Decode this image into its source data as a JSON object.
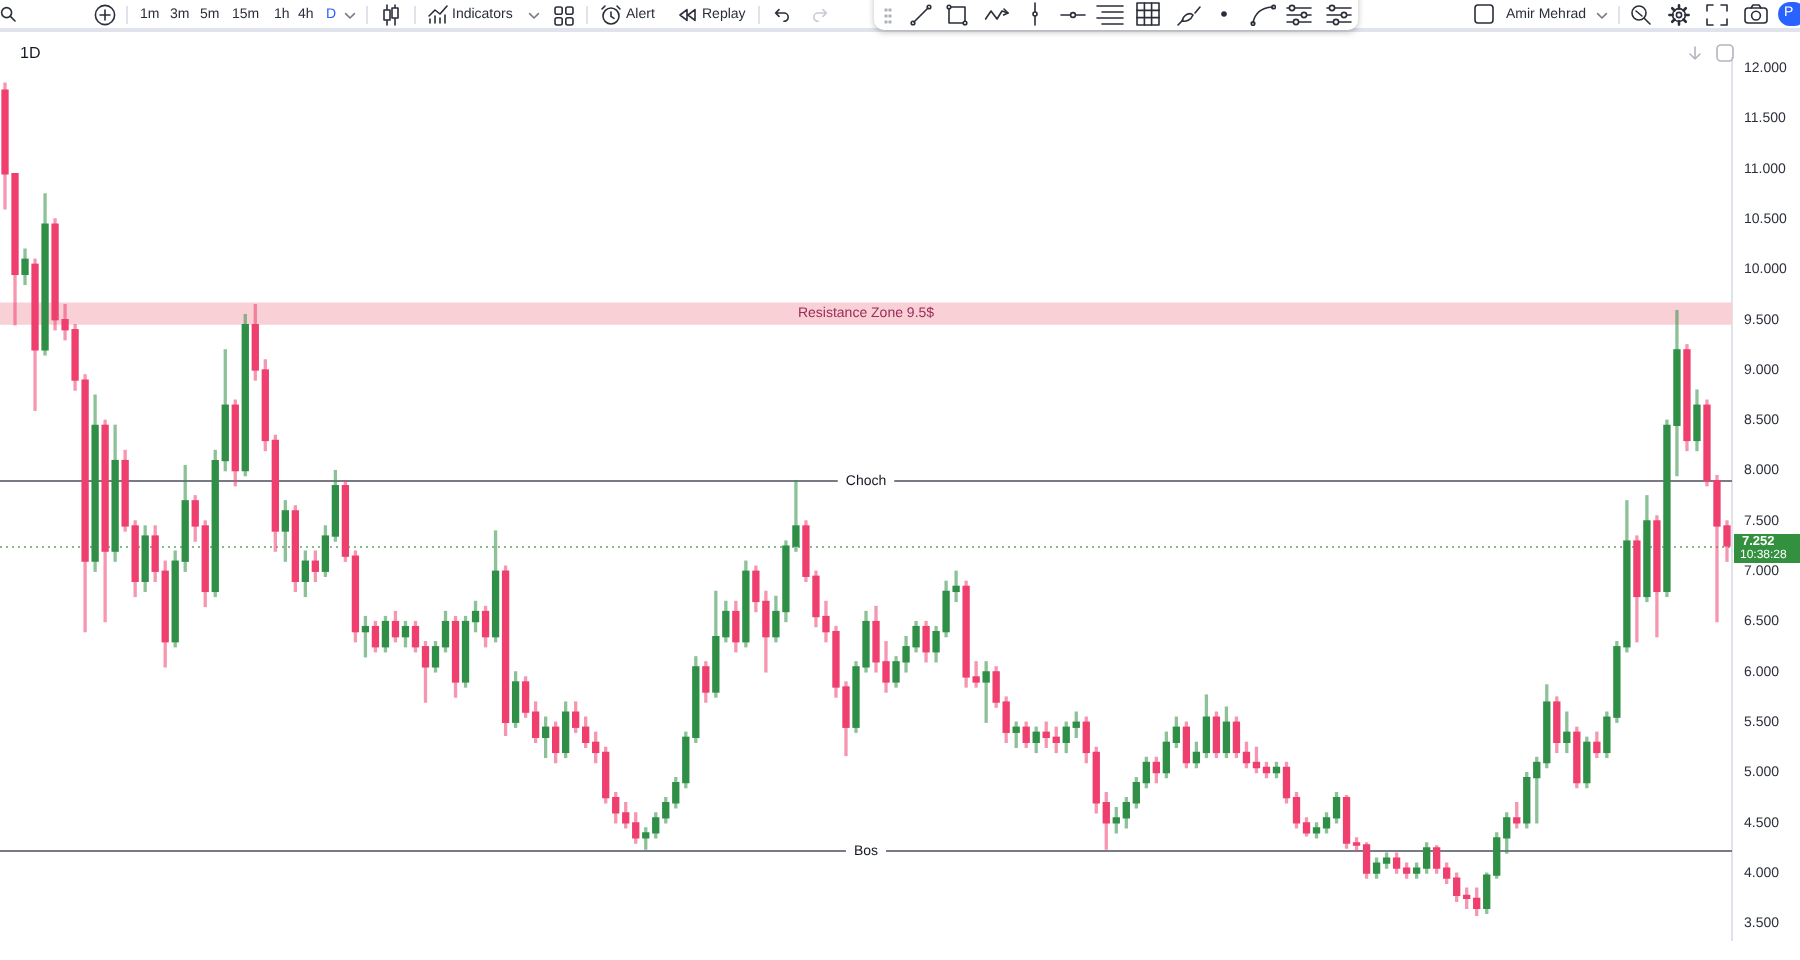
{
  "chart_data": {
    "type": "candlestick",
    "title": "1D",
    "categories": [
      null,
      null,
      null,
      null,
      null,
      null,
      null,
      null,
      null,
      null,
      null,
      null,
      null,
      null,
      null,
      null,
      null,
      null,
      null,
      null,
      null,
      null,
      null,
      null,
      null,
      null,
      null,
      null,
      null,
      null,
      null,
      null,
      null,
      null,
      null,
      null,
      null,
      null,
      null,
      null,
      null,
      null,
      null,
      null,
      null,
      null,
      null,
      null,
      null,
      null,
      null,
      null,
      null,
      null,
      null,
      null,
      null,
      null,
      null,
      null,
      null,
      null,
      null,
      null,
      null,
      null,
      null,
      null,
      null,
      null,
      null,
      null,
      null,
      null,
      null,
      null,
      null,
      null,
      null,
      null,
      null,
      null,
      null,
      null,
      null,
      null,
      null,
      null,
      null,
      null,
      null,
      null,
      null,
      null,
      null,
      null,
      null,
      null,
      null,
      null,
      null,
      null,
      null,
      null,
      null,
      null,
      null,
      null,
      null,
      null,
      null,
      null,
      null,
      null,
      null,
      null,
      null,
      null,
      null,
      null,
      null,
      null,
      null,
      null,
      null,
      null,
      null,
      null,
      null,
      null,
      null,
      null,
      null,
      null,
      null,
      null,
      null,
      null,
      null,
      null,
      null,
      null,
      null,
      null,
      null,
      null,
      null,
      null,
      null,
      null,
      null,
      null,
      null,
      null,
      null,
      null,
      null,
      null,
      null,
      null,
      null,
      null,
      null,
      null,
      null,
      null,
      null,
      null,
      null,
      null,
      null,
      null,
      null
    ],
    "ohlc": [
      [
        11.78,
        11.85,
        10.6,
        10.95
      ],
      [
        10.95,
        10.95,
        9.45,
        9.95
      ],
      [
        9.95,
        10.2,
        9.85,
        10.1
      ],
      [
        10.05,
        10.1,
        8.6,
        9.2
      ],
      [
        9.2,
        10.75,
        9.15,
        10.45
      ],
      [
        10.45,
        10.5,
        9.4,
        9.5
      ],
      [
        9.5,
        9.65,
        9.3,
        9.4
      ],
      [
        9.4,
        9.45,
        8.8,
        8.9
      ],
      [
        8.9,
        8.95,
        6.4,
        7.1
      ],
      [
        7.1,
        8.75,
        7.0,
        8.45
      ],
      [
        8.45,
        8.5,
        6.5,
        7.2
      ],
      [
        7.2,
        8.45,
        7.1,
        8.1
      ],
      [
        8.1,
        8.2,
        7.4,
        7.45
      ],
      [
        7.45,
        7.5,
        6.75,
        6.9
      ],
      [
        6.9,
        7.45,
        6.8,
        7.35
      ],
      [
        7.35,
        7.45,
        6.9,
        7.0
      ],
      [
        7.0,
        7.1,
        6.05,
        6.3
      ],
      [
        6.3,
        7.2,
        6.25,
        7.1
      ],
      [
        7.1,
        8.05,
        7.0,
        7.7
      ],
      [
        7.7,
        7.75,
        7.3,
        7.45
      ],
      [
        7.45,
        7.5,
        6.65,
        6.8
      ],
      [
        6.8,
        8.2,
        6.75,
        8.1
      ],
      [
        8.1,
        9.2,
        8.0,
        8.65
      ],
      [
        8.65,
        8.7,
        7.85,
        8.0
      ],
      [
        8.0,
        9.55,
        7.95,
        9.45
      ],
      [
        9.45,
        9.65,
        8.9,
        9.0
      ],
      [
        9.0,
        9.1,
        8.2,
        8.3
      ],
      [
        8.3,
        8.35,
        7.2,
        7.4
      ],
      [
        7.4,
        7.7,
        7.1,
        7.6
      ],
      [
        7.6,
        7.65,
        6.8,
        6.9
      ],
      [
        6.9,
        7.2,
        6.75,
        7.1
      ],
      [
        7.1,
        7.2,
        6.9,
        7.0
      ],
      [
        7.0,
        7.45,
        6.95,
        7.35
      ],
      [
        7.35,
        8.0,
        7.3,
        7.85
      ],
      [
        7.85,
        7.9,
        7.1,
        7.15
      ],
      [
        7.15,
        7.2,
        6.3,
        6.4
      ],
      [
        6.4,
        6.55,
        6.15,
        6.45
      ],
      [
        6.45,
        6.5,
        6.2,
        6.25
      ],
      [
        6.25,
        6.55,
        6.2,
        6.5
      ],
      [
        6.5,
        6.6,
        6.3,
        6.35
      ],
      [
        6.35,
        6.5,
        6.25,
        6.45
      ],
      [
        6.45,
        6.5,
        6.2,
        6.25
      ],
      [
        6.25,
        6.3,
        5.7,
        6.05
      ],
      [
        6.05,
        6.3,
        6.0,
        6.25
      ],
      [
        6.25,
        6.6,
        6.2,
        6.5
      ],
      [
        6.5,
        6.55,
        5.75,
        5.9
      ],
      [
        5.9,
        6.55,
        5.85,
        6.5
      ],
      [
        6.5,
        6.7,
        6.4,
        6.6
      ],
      [
        6.6,
        6.65,
        6.25,
        6.35
      ],
      [
        6.35,
        7.4,
        6.3,
        7.0
      ],
      [
        7.0,
        7.05,
        5.37,
        5.5
      ],
      [
        5.5,
        6.0,
        5.45,
        5.9
      ],
      [
        5.9,
        5.95,
        5.55,
        5.6
      ],
      [
        5.6,
        5.7,
        5.3,
        5.35
      ],
      [
        5.35,
        5.55,
        5.15,
        5.45
      ],
      [
        5.45,
        5.5,
        5.1,
        5.2
      ],
      [
        5.2,
        5.7,
        5.15,
        5.6
      ],
      [
        5.6,
        5.7,
        5.4,
        5.45
      ],
      [
        5.45,
        5.55,
        5.25,
        5.3
      ],
      [
        5.3,
        5.4,
        5.1,
        5.2
      ],
      [
        5.2,
        5.25,
        4.7,
        4.75
      ],
      [
        4.75,
        4.8,
        4.5,
        4.6
      ],
      [
        4.6,
        4.7,
        4.45,
        4.5
      ],
      [
        4.5,
        4.6,
        4.3,
        4.35
      ],
      [
        4.35,
        4.45,
        4.24,
        4.4
      ],
      [
        4.4,
        4.6,
        4.35,
        4.55
      ],
      [
        4.55,
        4.75,
        4.5,
        4.7
      ],
      [
        4.7,
        4.95,
        4.65,
        4.9
      ],
      [
        4.9,
        5.4,
        4.85,
        5.35
      ],
      [
        5.35,
        6.15,
        5.3,
        6.05
      ],
      [
        6.05,
        6.1,
        5.7,
        5.8
      ],
      [
        5.8,
        6.8,
        5.75,
        6.35
      ],
      [
        6.35,
        6.7,
        6.3,
        6.6
      ],
      [
        6.6,
        6.7,
        6.2,
        6.3
      ],
      [
        6.3,
        7.1,
        6.25,
        7.0
      ],
      [
        7.0,
        7.05,
        6.6,
        6.7
      ],
      [
        6.7,
        6.8,
        6.0,
        6.35
      ],
      [
        6.35,
        6.75,
        6.3,
        6.6
      ],
      [
        6.6,
        7.3,
        6.5,
        7.25
      ],
      [
        7.25,
        7.9,
        7.2,
        7.45
      ],
      [
        7.45,
        7.5,
        6.9,
        6.95
      ],
      [
        6.95,
        7.0,
        6.45,
        6.55
      ],
      [
        6.55,
        6.7,
        6.3,
        6.4
      ],
      [
        6.4,
        6.45,
        5.75,
        5.85
      ],
      [
        5.85,
        5.9,
        5.17,
        5.45
      ],
      [
        5.45,
        6.1,
        5.4,
        6.05
      ],
      [
        6.05,
        6.6,
        6.0,
        6.5
      ],
      [
        6.5,
        6.65,
        6.0,
        6.1
      ],
      [
        6.1,
        6.3,
        5.8,
        5.9
      ],
      [
        5.9,
        6.15,
        5.85,
        6.1
      ],
      [
        6.1,
        6.35,
        6.0,
        6.25
      ],
      [
        6.25,
        6.5,
        6.2,
        6.45
      ],
      [
        6.45,
        6.5,
        6.1,
        6.2
      ],
      [
        6.2,
        6.45,
        6.1,
        6.4
      ],
      [
        6.4,
        6.9,
        6.35,
        6.8
      ],
      [
        6.8,
        7.0,
        6.7,
        6.85
      ],
      [
        6.85,
        6.9,
        5.85,
        5.95
      ],
      [
        5.95,
        6.1,
        5.85,
        5.9
      ],
      [
        5.9,
        6.1,
        5.5,
        6.0
      ],
      [
        6.0,
        6.05,
        5.65,
        5.7
      ],
      [
        5.7,
        5.75,
        5.3,
        5.4
      ],
      [
        5.4,
        5.5,
        5.25,
        5.45
      ],
      [
        5.45,
        5.5,
        5.25,
        5.3
      ],
      [
        5.3,
        5.45,
        5.2,
        5.4
      ],
      [
        5.4,
        5.5,
        5.25,
        5.35
      ],
      [
        5.35,
        5.45,
        5.2,
        5.3
      ],
      [
        5.3,
        5.5,
        5.2,
        5.45
      ],
      [
        5.45,
        5.6,
        5.35,
        5.5
      ],
      [
        5.5,
        5.55,
        5.1,
        5.2
      ],
      [
        5.2,
        5.25,
        4.6,
        4.7
      ],
      [
        4.7,
        4.8,
        4.24,
        4.5
      ],
      [
        4.5,
        4.65,
        4.4,
        4.55
      ],
      [
        4.55,
        4.75,
        4.45,
        4.7
      ],
      [
        4.7,
        4.95,
        4.65,
        4.9
      ],
      [
        4.9,
        5.15,
        4.85,
        5.1
      ],
      [
        5.1,
        5.15,
        4.9,
        5.0
      ],
      [
        5.0,
        5.4,
        4.95,
        5.3
      ],
      [
        5.3,
        5.55,
        5.25,
        5.45
      ],
      [
        5.45,
        5.5,
        5.05,
        5.1
      ],
      [
        5.1,
        5.3,
        5.05,
        5.2
      ],
      [
        5.2,
        5.77,
        5.15,
        5.55
      ],
      [
        5.55,
        5.6,
        5.15,
        5.2
      ],
      [
        5.2,
        5.65,
        5.15,
        5.5
      ],
      [
        5.5,
        5.55,
        5.15,
        5.2
      ],
      [
        5.2,
        5.3,
        5.05,
        5.1
      ],
      [
        5.1,
        5.25,
        5.0,
        5.05
      ],
      [
        5.05,
        5.1,
        4.95,
        5.0
      ],
      [
        5.0,
        5.1,
        4.95,
        5.05
      ],
      [
        5.05,
        5.1,
        4.7,
        4.75
      ],
      [
        4.75,
        4.8,
        4.45,
        4.5
      ],
      [
        4.5,
        4.55,
        4.37,
        4.4
      ],
      [
        4.4,
        4.5,
        4.35,
        4.45
      ],
      [
        4.45,
        4.6,
        4.4,
        4.55
      ],
      [
        4.55,
        4.8,
        4.5,
        4.75
      ],
      [
        4.75,
        4.77,
        4.25,
        4.3
      ],
      [
        4.3,
        4.35,
        4.22,
        4.28
      ],
      [
        4.28,
        4.3,
        3.95,
        4.0
      ],
      [
        4.0,
        4.15,
        3.95,
        4.1
      ],
      [
        4.1,
        4.2,
        4.05,
        4.15
      ],
      [
        4.15,
        4.2,
        4.0,
        4.05
      ],
      [
        4.05,
        4.1,
        3.95,
        4.0
      ],
      [
        4.0,
        4.1,
        3.95,
        4.05
      ],
      [
        4.05,
        4.3,
        4.0,
        4.25
      ],
      [
        4.25,
        4.27,
        4.0,
        4.05
      ],
      [
        4.05,
        4.1,
        3.9,
        3.95
      ],
      [
        3.95,
        4.0,
        3.72,
        3.78
      ],
      [
        3.78,
        3.85,
        3.65,
        3.75
      ],
      [
        3.75,
        3.85,
        3.58,
        3.65
      ],
      [
        3.65,
        4.0,
        3.6,
        3.98
      ],
      [
        3.98,
        4.4,
        3.95,
        4.35
      ],
      [
        4.35,
        4.6,
        4.2,
        4.55
      ],
      [
        4.55,
        4.7,
        4.45,
        4.5
      ],
      [
        4.5,
        5.0,
        4.45,
        4.95
      ],
      [
        4.95,
        5.15,
        4.5,
        5.1
      ],
      [
        5.1,
        5.87,
        5.05,
        5.7
      ],
      [
        5.7,
        5.75,
        5.2,
        5.3
      ],
      [
        5.3,
        5.6,
        5.2,
        5.4
      ],
      [
        5.4,
        5.45,
        4.85,
        4.9
      ],
      [
        4.9,
        5.35,
        4.85,
        5.3
      ],
      [
        5.3,
        5.4,
        5.15,
        5.2
      ],
      [
        5.2,
        5.6,
        5.15,
        5.55
      ],
      [
        5.55,
        6.3,
        5.5,
        6.25
      ],
      [
        6.25,
        7.7,
        6.2,
        7.3
      ],
      [
        7.3,
        7.35,
        6.3,
        6.75
      ],
      [
        6.75,
        7.75,
        6.7,
        7.5
      ],
      [
        7.5,
        7.55,
        6.35,
        6.8
      ],
      [
        6.8,
        8.5,
        6.75,
        8.45
      ],
      [
        8.45,
        9.59,
        7.95,
        9.2
      ],
      [
        9.2,
        9.25,
        8.2,
        8.3
      ],
      [
        8.3,
        8.8,
        8.2,
        8.65
      ],
      [
        8.65,
        8.7,
        7.85,
        7.9
      ],
      [
        7.9,
        7.95,
        6.5,
        7.45
      ],
      [
        7.45,
        7.5,
        7.1,
        7.252
      ]
    ],
    "colors": [
      "#ee3f6f",
      "#ee3f6f",
      "#2f8f46",
      "#ee3f6f",
      "#2f8f46",
      "#ee3f6f",
      "#ee3f6f",
      "#ee3f6f",
      "#ee3f6f",
      "#2f8f46",
      "#ee3f6f",
      "#2f8f46",
      "#ee3f6f",
      "#ee3f6f",
      "#2f8f46",
      "#ee3f6f",
      "#ee3f6f",
      "#2f8f46",
      "#2f8f46",
      "#ee3f6f",
      "#ee3f6f",
      "#2f8f46",
      "#2f8f46",
      "#ee3f6f",
      "#2f8f46",
      "#ee3f6f",
      "#ee3f6f",
      "#ee3f6f",
      "#2f8f46",
      "#ee3f6f",
      "#2f8f46",
      "#ee3f6f",
      "#2f8f46",
      "#2f8f46",
      "#ee3f6f",
      "#ee3f6f",
      "#2f8f46",
      "#ee3f6f",
      "#2f8f46",
      "#ee3f6f",
      "#2f8f46",
      "#ee3f6f",
      "#ee3f6f",
      "#2f8f46",
      "#2f8f46",
      "#ee3f6f",
      "#2f8f46",
      "#2f8f46",
      "#ee3f6f",
      "#2f8f46",
      "#ee3f6f",
      "#2f8f46",
      "#ee3f6f",
      "#ee3f6f",
      "#2f8f46",
      "#ee3f6f",
      "#2f8f46",
      "#ee3f6f",
      "#ee3f6f",
      "#ee3f6f",
      "#ee3f6f",
      "#ee3f6f",
      "#ee3f6f",
      "#ee3f6f",
      "#2f8f46",
      "#2f8f46",
      "#2f8f46",
      "#2f8f46",
      "#2f8f46",
      "#2f8f46",
      "#ee3f6f",
      "#2f8f46",
      "#2f8f46",
      "#ee3f6f",
      "#2f8f46",
      "#ee3f6f",
      "#ee3f6f",
      "#2f8f46",
      "#2f8f46",
      "#2f8f46",
      "#ee3f6f",
      "#ee3f6f",
      "#ee3f6f",
      "#ee3f6f",
      "#ee3f6f",
      "#2f8f46",
      "#2f8f46",
      "#ee3f6f",
      "#ee3f6f",
      "#2f8f46",
      "#2f8f46",
      "#2f8f46",
      "#ee3f6f",
      "#2f8f46",
      "#2f8f46",
      "#2f8f46",
      "#ee3f6f",
      "#ee3f6f",
      "#2f8f46",
      "#ee3f6f",
      "#ee3f6f",
      "#2f8f46",
      "#ee3f6f",
      "#2f8f46",
      "#ee3f6f",
      "#ee3f6f",
      "#2f8f46",
      "#2f8f46",
      "#ee3f6f",
      "#ee3f6f",
      "#ee3f6f",
      "#2f8f46",
      "#2f8f46",
      "#2f8f46",
      "#2f8f46",
      "#ee3f6f",
      "#2f8f46",
      "#2f8f46",
      "#ee3f6f",
      "#2f8f46",
      "#2f8f46",
      "#ee3f6f",
      "#2f8f46",
      "#ee3f6f",
      "#ee3f6f",
      "#ee3f6f",
      "#ee3f6f",
      "#2f8f46",
      "#ee3f6f",
      "#ee3f6f",
      "#ee3f6f",
      "#2f8f46",
      "#2f8f46",
      "#2f8f46",
      "#ee3f6f",
      "#ee3f6f",
      "#ee3f6f",
      "#2f8f46",
      "#2f8f46",
      "#ee3f6f",
      "#ee3f6f",
      "#2f8f46",
      "#2f8f46",
      "#ee3f6f",
      "#ee3f6f",
      "#ee3f6f",
      "#ee3f6f",
      "#ee3f6f",
      "#2f8f46",
      "#2f8f46",
      "#2f8f46",
      "#ee3f6f",
      "#2f8f46",
      "#2f8f46",
      "#2f8f46",
      "#ee3f6f",
      "#2f8f46",
      "#ee3f6f",
      "#2f8f46",
      "#ee3f6f",
      "#2f8f46",
      "#2f8f46",
      "#2f8f46",
      "#ee3f6f",
      "#2f8f46",
      "#ee3f6f",
      "#2f8f46",
      "#2f8f46",
      "#ee3f6f",
      "#2f8f46",
      "#ee3f6f",
      "#ee3f6f",
      "#ee3f6f"
    ],
    "ylim": [
      3.34,
      12.1
    ],
    "yticks": [
      {
        "value": 3.5,
        "label": "3.500"
      },
      {
        "value": 4,
        "label": "4.000"
      },
      {
        "value": 4.5,
        "label": "4.500"
      },
      {
        "value": 5,
        "label": "5.000"
      },
      {
        "value": 5.5,
        "label": "5.500"
      },
      {
        "value": 6,
        "label": "6.000"
      },
      {
        "value": 6.5,
        "label": "6.500"
      },
      {
        "value": 7,
        "label": "7.000"
      },
      {
        "value": 7.5,
        "label": "7.500"
      },
      {
        "value": 8,
        "label": "8.000"
      },
      {
        "value": 8.5,
        "label": "8.500"
      },
      {
        "value": 9,
        "label": "9.000"
      },
      {
        "value": 9.5,
        "label": "9.500"
      },
      {
        "value": 10,
        "label": "10.000"
      },
      {
        "value": 10.5,
        "label": "10.500"
      },
      {
        "value": 11,
        "label": "11.000"
      },
      {
        "value": 11.5,
        "label": "11.500"
      },
      {
        "value": 12,
        "label": "12.000"
      }
    ],
    "tick_labels": "y",
    "bands": [
      {
        "axis": "y",
        "from": 9.45,
        "to": 9.67,
        "label": "Resistance Zone 9.5$",
        "color": "#f9d0d6"
      }
    ],
    "ref_lines": [
      {
        "axis": "y",
        "value": 7.9,
        "label": "Choch",
        "color": "#787b86",
        "line_style": "solid"
      },
      {
        "axis": "y",
        "value": 4.24,
        "label": "Bos",
        "color": "#787b86",
        "line_style": "solid"
      },
      {
        "axis": "y",
        "value": 7.252,
        "label": "7.252",
        "color": "#32903f",
        "line_style": "dotted"
      }
    ],
    "annotations": [
      "1m",
      "3m",
      "5m",
      "15m",
      "1h",
      "4h",
      "D",
      "Indicators",
      "Alert",
      "Replay",
      "Amir Mehrad",
      "P",
      "10:38:28"
    ]
  }
}
